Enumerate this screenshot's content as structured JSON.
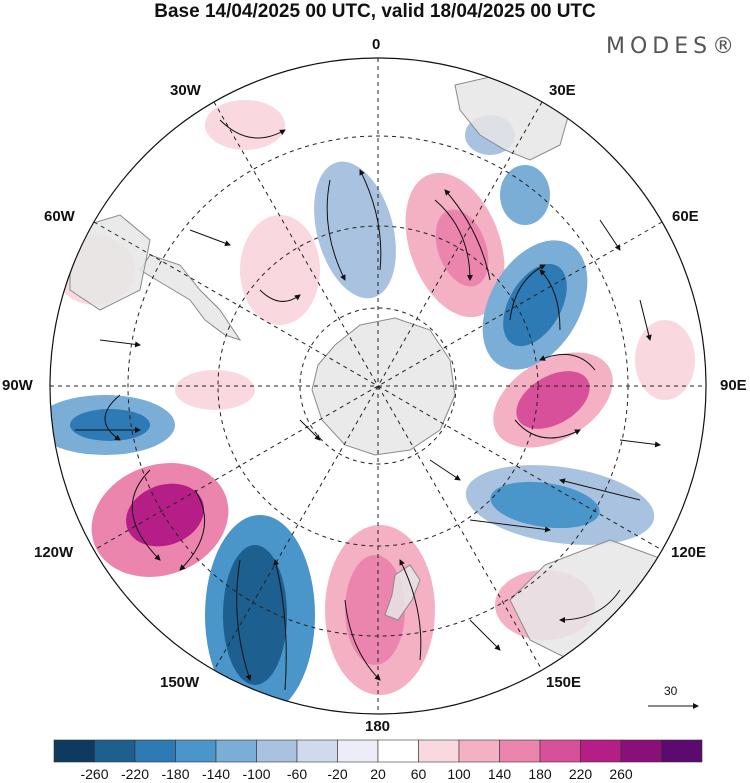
{
  "header": {
    "title": "Base 14/04/2025 00 UTC, valid 18/04/2025 00 UTC",
    "brand": "MODES®"
  },
  "map": {
    "projection": "south-polar-stereographic",
    "longitude_labels": {
      "lon_0": "0",
      "lon_30e": "30E",
      "lon_60e": "60E",
      "lon_90e": "90E",
      "lon_120e": "120E",
      "lon_150e": "150E",
      "lon_180": "180",
      "lon_150w": "150W",
      "lon_120w": "120W",
      "lon_90w": "90W",
      "lon_60w": "60W",
      "lon_30w": "30W"
    },
    "reference_vector": {
      "label": "30"
    },
    "colors": {
      "land": "#e6e6e6",
      "coast": "#8a8a8a",
      "negative_strong": "#1b4f72",
      "positive_strong": "#b0127a"
    }
  },
  "colorbar": {
    "labels": [
      "-260",
      "-220",
      "-180",
      "-140",
      "-100",
      "-60",
      "-20",
      "20",
      "60",
      "100",
      "140",
      "180",
      "220",
      "260"
    ],
    "colors": [
      "#0d3a5e",
      "#1d5f8e",
      "#2e7ab5",
      "#4a95c9",
      "#7aaed6",
      "#a8c2e0",
      "#d1d9ec",
      "#ecedf6",
      "#ffffff",
      "#f9d9df",
      "#f4b1c4",
      "#ec85ad",
      "#d9509a",
      "#b51e86",
      "#8a0f7a",
      "#5c0a6f"
    ]
  }
}
